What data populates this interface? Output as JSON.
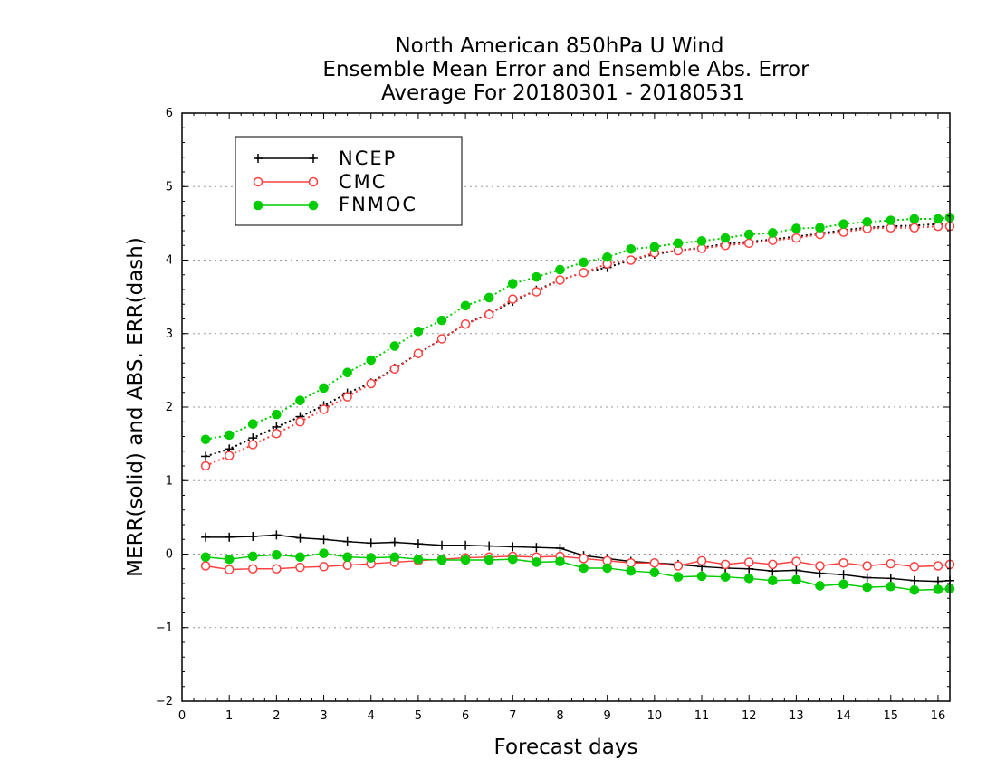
{
  "chart_data": {
    "type": "line",
    "title": [
      "North American 850hPa U Wind",
      "Ensemble Mean Error and Ensemble Abs. Error",
      "Average For 20180301 - 20180531"
    ],
    "xlabel": "Forecast days",
    "ylabel": "MERR(solid) and ABS. ERR(dash)",
    "xlim": [
      0,
      16.25
    ],
    "ylim": [
      -2,
      6
    ],
    "xticks": [
      "0",
      "1",
      "2",
      "3",
      "4",
      "5",
      "6",
      "7",
      "8",
      "9",
      "10",
      "11",
      "12",
      "13",
      "14",
      "15",
      "16"
    ],
    "yticks": [
      "−2",
      "−1",
      "0",
      "1",
      "2",
      "3",
      "4",
      "5",
      "6"
    ],
    "grid": "horizontal-dotted",
    "legend_position": "top-left",
    "x": [
      0.5,
      1,
      1.5,
      2,
      2.5,
      3,
      3.5,
      4,
      4.5,
      5,
      5.5,
      6,
      6.5,
      7,
      7.5,
      8,
      8.5,
      9,
      9.5,
      10,
      10.5,
      11,
      11.5,
      12,
      12.5,
      13,
      13.5,
      14,
      14.5,
      15,
      15.5,
      16,
      16.25
    ],
    "series": [
      {
        "name": "NCEP",
        "color": "#000000",
        "marker": "plus",
        "style": "solid",
        "values": [
          0.23,
          0.23,
          0.24,
          0.26,
          0.22,
          0.2,
          0.17,
          0.15,
          0.16,
          0.14,
          0.12,
          0.12,
          0.11,
          0.1,
          0.09,
          0.08,
          -0.02,
          -0.06,
          -0.1,
          -0.12,
          -0.14,
          -0.17,
          -0.19,
          -0.2,
          -0.23,
          -0.22,
          -0.26,
          -0.28,
          -0.32,
          -0.33,
          -0.36,
          -0.37,
          -0.36
        ]
      },
      {
        "name": "CMC",
        "color": "#ff4040",
        "marker": "open-circle",
        "style": "solid",
        "values": [
          -0.16,
          -0.21,
          -0.2,
          -0.2,
          -0.18,
          -0.17,
          -0.15,
          -0.13,
          -0.11,
          -0.09,
          -0.07,
          -0.05,
          -0.04,
          -0.03,
          -0.04,
          -0.03,
          -0.06,
          -0.09,
          -0.12,
          -0.12,
          -0.16,
          -0.09,
          -0.14,
          -0.11,
          -0.14,
          -0.1,
          -0.16,
          -0.12,
          -0.16,
          -0.13,
          -0.17,
          -0.16,
          -0.14
        ]
      },
      {
        "name": "FNMOC",
        "color": "#00cc00",
        "marker": "filled-circle",
        "style": "solid",
        "values": [
          -0.04,
          -0.07,
          -0.03,
          -0.01,
          -0.04,
          0.01,
          -0.04,
          -0.05,
          -0.04,
          -0.07,
          -0.08,
          -0.08,
          -0.08,
          -0.07,
          -0.11,
          -0.1,
          -0.19,
          -0.19,
          -0.23,
          -0.25,
          -0.31,
          -0.3,
          -0.31,
          -0.33,
          -0.36,
          -0.35,
          -0.43,
          -0.41,
          -0.45,
          -0.44,
          -0.49,
          -0.48,
          -0.47
        ]
      },
      {
        "name": "NCEP",
        "color": "#000000",
        "marker": "plus",
        "style": "dotted",
        "values": [
          1.33,
          1.43,
          1.58,
          1.73,
          1.87,
          2.02,
          2.19,
          2.33,
          2.53,
          2.73,
          2.93,
          3.13,
          3.27,
          3.44,
          3.59,
          3.73,
          3.83,
          3.9,
          4.0,
          4.08,
          4.13,
          4.17,
          4.22,
          4.25,
          4.28,
          4.32,
          4.36,
          4.41,
          4.44,
          4.46,
          4.47,
          4.49,
          4.47
        ]
      },
      {
        "name": "CMC",
        "color": "#ff4040",
        "marker": "open-circle",
        "style": "dotted",
        "values": [
          1.2,
          1.34,
          1.49,
          1.64,
          1.8,
          1.97,
          2.14,
          2.32,
          2.52,
          2.73,
          2.93,
          3.13,
          3.26,
          3.47,
          3.57,
          3.73,
          3.83,
          3.95,
          4.0,
          4.1,
          4.13,
          4.16,
          4.2,
          4.23,
          4.27,
          4.3,
          4.35,
          4.38,
          4.43,
          4.44,
          4.44,
          4.46,
          4.46
        ]
      },
      {
        "name": "FNMOC",
        "color": "#00cc00",
        "marker": "filled-circle",
        "style": "dotted",
        "values": [
          1.56,
          1.62,
          1.77,
          1.9,
          2.09,
          2.26,
          2.47,
          2.64,
          2.83,
          3.03,
          3.18,
          3.38,
          3.49,
          3.68,
          3.77,
          3.87,
          3.97,
          4.04,
          4.15,
          4.18,
          4.23,
          4.26,
          4.3,
          4.35,
          4.37,
          4.43,
          4.44,
          4.49,
          4.52,
          4.54,
          4.56,
          4.56,
          4.58
        ]
      }
    ],
    "legend": [
      {
        "label": "NCEP",
        "color": "#000000",
        "marker": "plus"
      },
      {
        "label": "CMC",
        "color": "#ff4040",
        "marker": "open-circle"
      },
      {
        "label": "FNMOC",
        "color": "#00cc00",
        "marker": "filled-circle"
      }
    ]
  }
}
